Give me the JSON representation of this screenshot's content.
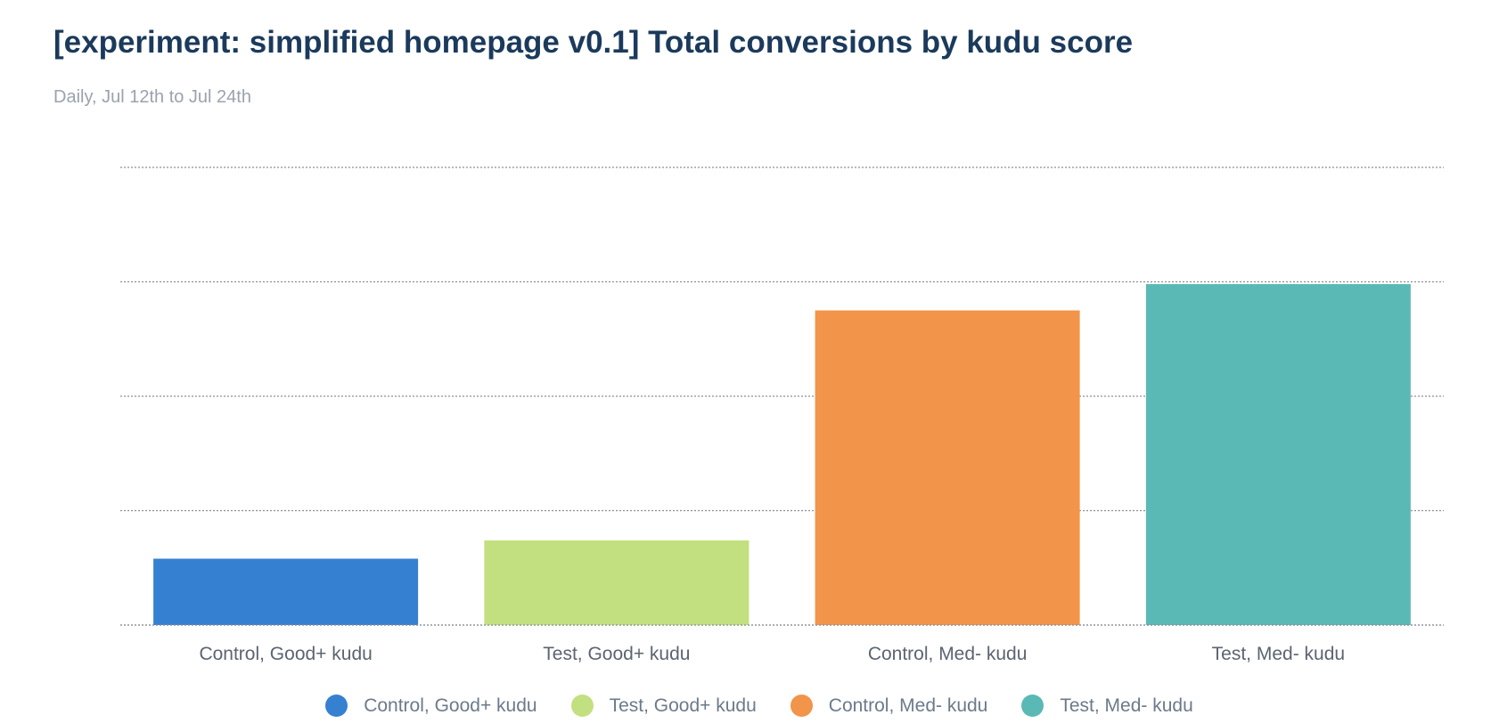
{
  "header": {
    "title": "[experiment: simplified homepage v0.1] Total conversions by kudu score",
    "subtitle": "Daily, Jul 12th to Jul 24th"
  },
  "chart_data": {
    "type": "bar",
    "categories": [
      "Control, Good+ kudu",
      "Test, Good+ kudu",
      "Control, Med- kudu",
      "Test, Med- kudu"
    ],
    "values": [
      58,
      74,
      275,
      298
    ],
    "colors": [
      "#3580d0",
      "#c2e07f",
      "#f2944a",
      "#5ab9b4"
    ],
    "ylim": [
      0,
      400
    ],
    "grid": true,
    "y_tick_labels_shown": false,
    "legend": {
      "position": "bottom",
      "entries": [
        {
          "label": "Control, Good+ kudu",
          "color": "#3580d0"
        },
        {
          "label": "Test, Good+ kudu",
          "color": "#c2e07f"
        },
        {
          "label": "Control, Med- kudu",
          "color": "#f2944a"
        },
        {
          "label": "Test, Med- kudu",
          "color": "#5ab9b4"
        }
      ]
    }
  }
}
